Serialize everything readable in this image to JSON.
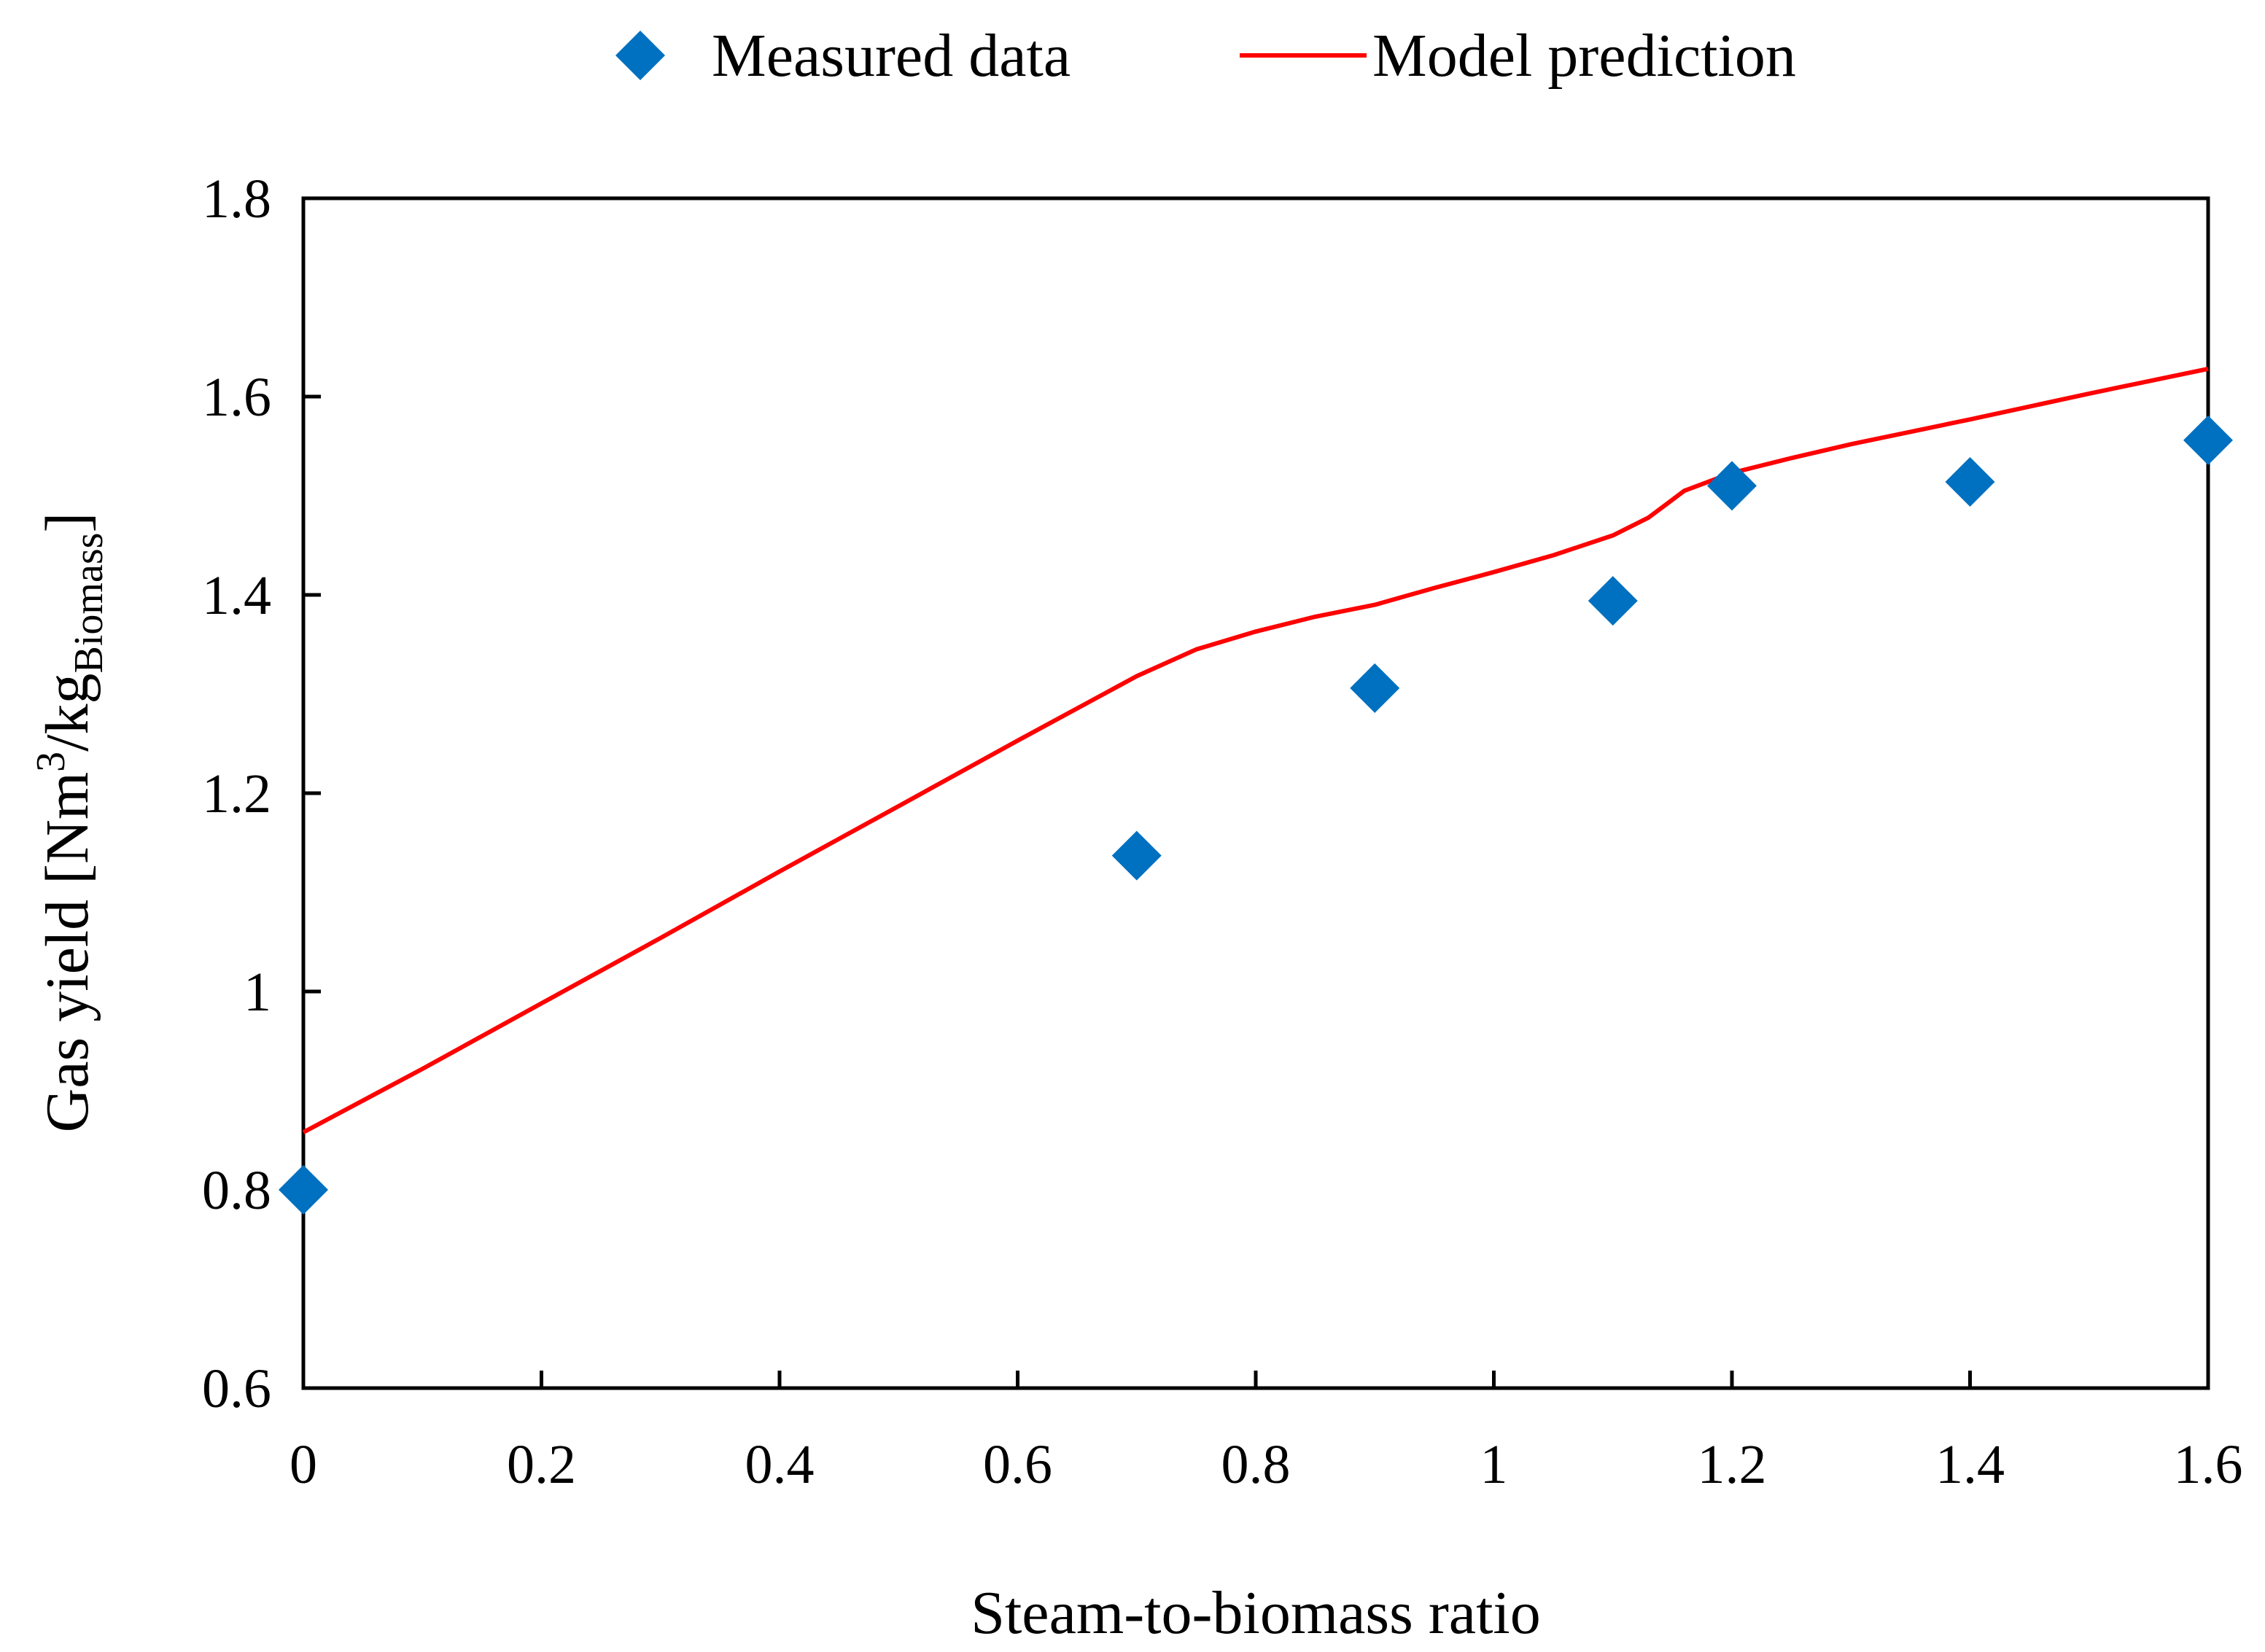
{
  "chart_data": {
    "type": "scatter",
    "title": "",
    "xlabel": "Steam-to-biomass ratio",
    "ylabel": {
      "main": "Gas yield [Nm",
      "sup": "3",
      "mid": "/kg",
      "sub": "Biomass",
      "end": "]"
    },
    "xlim": [
      0,
      1.6
    ],
    "ylim": [
      0.6,
      1.8
    ],
    "x_ticks": [
      "0",
      "0.2",
      "0.4",
      "0.6",
      "0.8",
      "1",
      "1.2",
      "1.4",
      "1.6"
    ],
    "y_ticks": [
      "0.6",
      "0.8",
      "1",
      "1.2",
      "1.4",
      "1.6",
      "1.8"
    ],
    "legend_position": "top",
    "grid": false,
    "series": [
      {
        "name": "Measured data",
        "kind": "scatter",
        "marker": "diamond",
        "color": "#0070c0",
        "x": [
          0,
          0.7,
          0.9,
          1.1,
          1.2,
          1.4,
          1.6
        ],
        "y": [
          0.8,
          1.137,
          1.306,
          1.394,
          1.51,
          1.514,
          1.556
        ]
      },
      {
        "name": "Model prediction",
        "kind": "line",
        "color": "#ff0000",
        "x": [
          0,
          0.1,
          0.2,
          0.3,
          0.4,
          0.5,
          0.6,
          0.7,
          0.75,
          0.8,
          0.85,
          0.9,
          0.95,
          1.0,
          1.05,
          1.1,
          1.13,
          1.16,
          1.2,
          1.25,
          1.3,
          1.4,
          1.5,
          1.6
        ],
        "y": [
          0.858,
          0.922,
          0.988,
          1.054,
          1.121,
          1.187,
          1.253,
          1.318,
          1.345,
          1.363,
          1.378,
          1.39,
          1.407,
          1.423,
          1.44,
          1.46,
          1.478,
          1.505,
          1.523,
          1.538,
          1.552,
          1.577,
          1.603,
          1.628
        ]
      }
    ]
  }
}
